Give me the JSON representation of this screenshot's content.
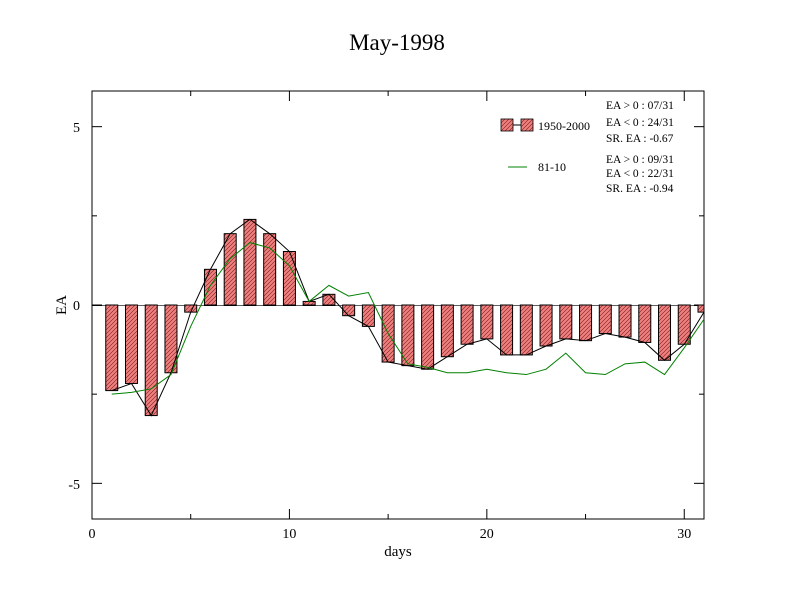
{
  "chart_data": {
    "type": "bar",
    "title": "May-1998",
    "xlabel": "days",
    "ylabel": "EA",
    "xlim": [
      0,
      31
    ],
    "ylim": [
      -6,
      6
    ],
    "xticks": [
      "0",
      "10",
      "20",
      "30"
    ],
    "yticks": [
      "5",
      "0",
      "-5"
    ],
    "grid": false,
    "legend": "top-right",
    "series": [
      {
        "name": "1950-2000",
        "kind": "bar",
        "fill": "#f08080",
        "x": [
          1,
          2,
          3,
          4,
          5,
          6,
          7,
          8,
          9,
          10,
          11,
          12,
          13,
          14,
          15,
          16,
          17,
          18,
          19,
          20,
          21,
          22,
          23,
          24,
          25,
          26,
          27,
          28,
          29,
          30,
          31
        ],
        "values": [
          -2.4,
          -2.2,
          -3.1,
          -1.9,
          -0.2,
          1.0,
          2.0,
          2.4,
          2.0,
          1.5,
          0.1,
          0.3,
          -0.3,
          -0.6,
          -1.6,
          -1.7,
          -1.8,
          -1.45,
          -1.1,
          -0.95,
          -1.4,
          -1.4,
          -1.15,
          -0.95,
          -1.0,
          -0.8,
          -0.9,
          -1.05,
          -1.55,
          -1.1,
          -0.2
        ]
      },
      {
        "name": "81-10",
        "kind": "line",
        "color": "#008000",
        "x": [
          1,
          2,
          3,
          4,
          5,
          6,
          7,
          8,
          9,
          10,
          11,
          12,
          13,
          14,
          15,
          16,
          17,
          18,
          19,
          20,
          21,
          22,
          23,
          24,
          25,
          26,
          27,
          28,
          29,
          30,
          31
        ],
        "values": [
          -2.5,
          -2.45,
          -2.35,
          -1.95,
          -0.6,
          0.55,
          1.3,
          1.75,
          1.6,
          1.1,
          0.1,
          0.55,
          0.25,
          0.35,
          -0.8,
          -1.65,
          -1.75,
          -1.9,
          -1.9,
          -1.8,
          -1.9,
          -1.95,
          -1.8,
          -1.35,
          -1.9,
          -1.95,
          -1.65,
          -1.6,
          -1.95,
          -1.2,
          -0.4
        ]
      }
    ],
    "stats": [
      [
        "EA > 0 : 07/31",
        "EA < 0 : 24/31",
        "SR. EA : -0.67"
      ],
      [
        "EA > 0 : 09/31",
        "EA < 0 : 22/31",
        "SR. EA : -0.94"
      ]
    ]
  }
}
